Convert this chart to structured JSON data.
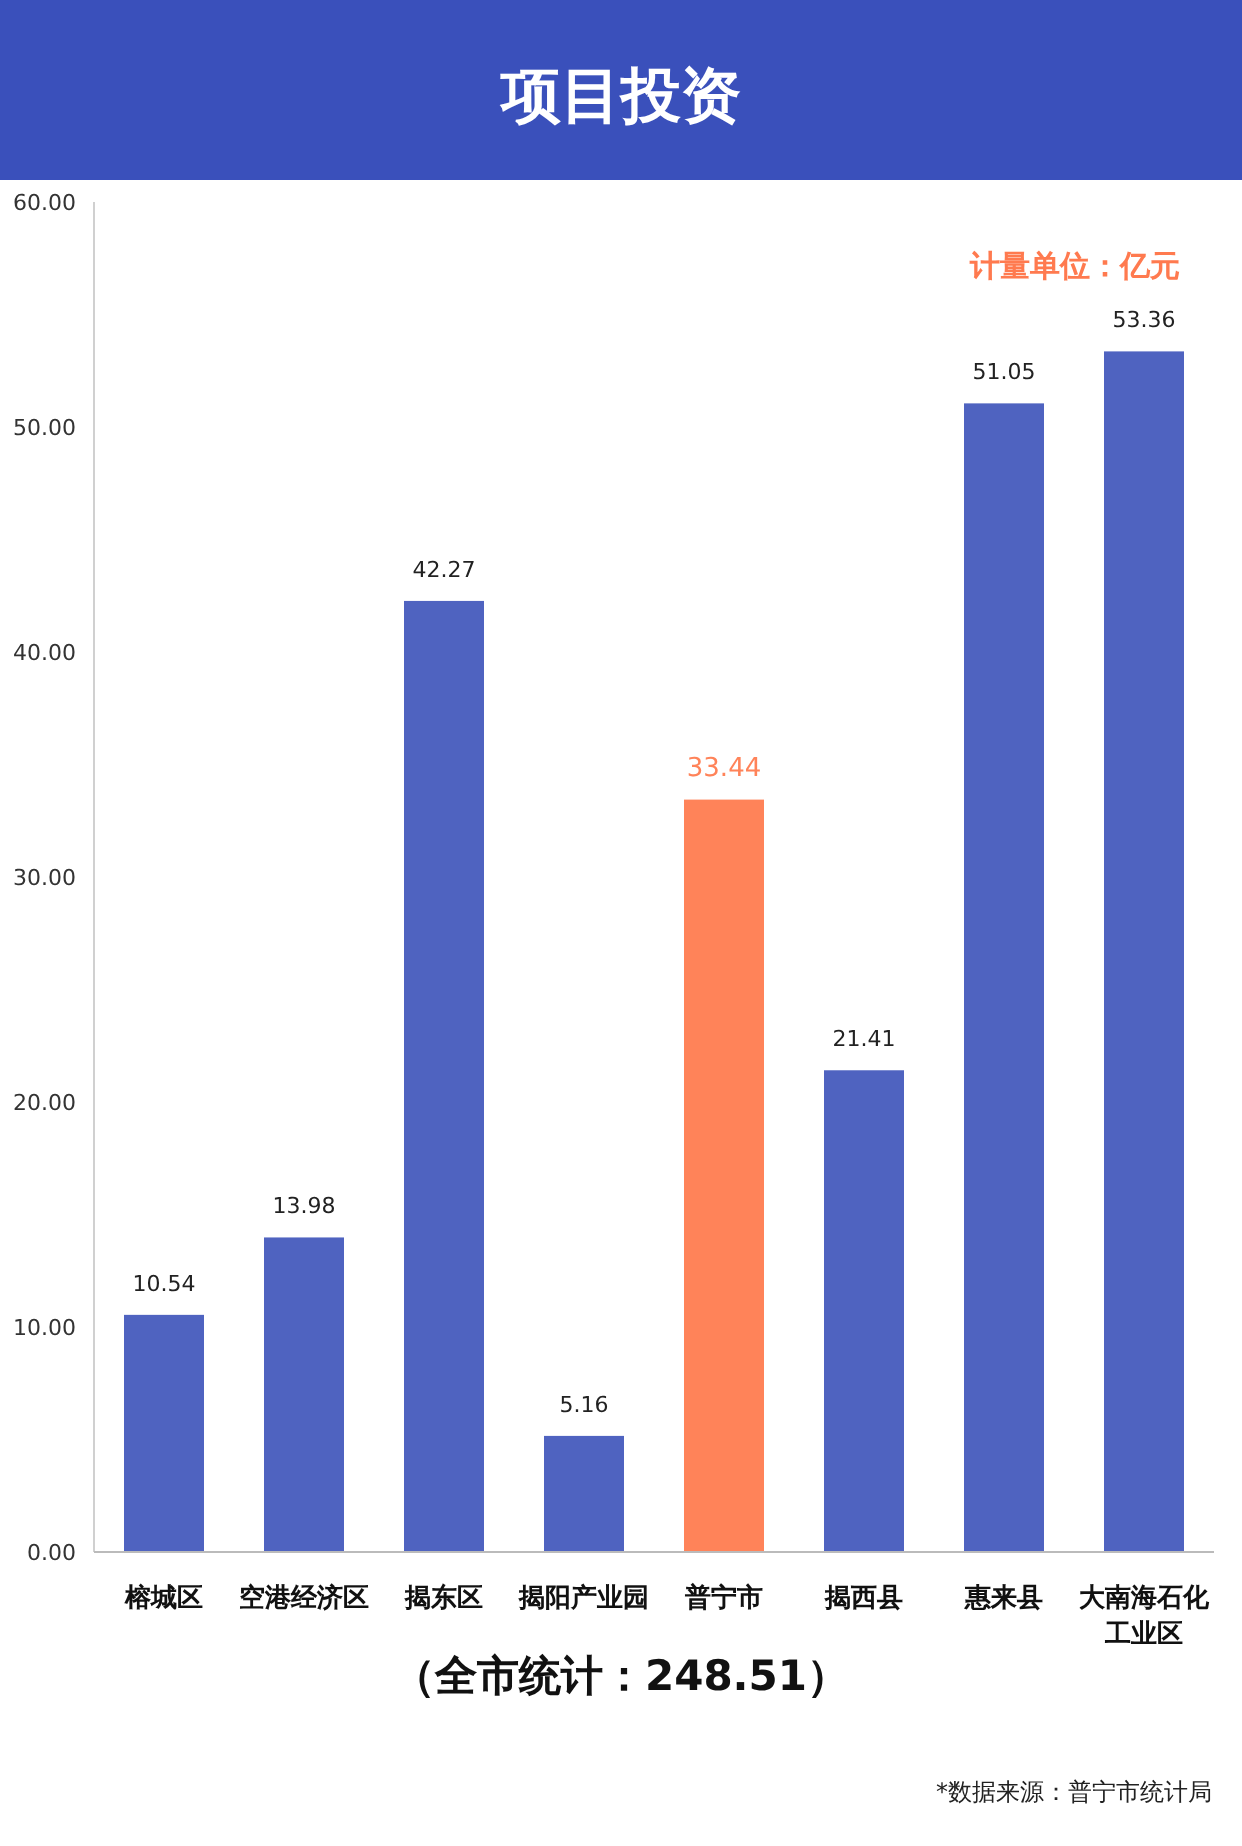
{
  "chart_data": {
    "type": "bar",
    "title": "项目投资",
    "categories": [
      "榕城区",
      "空港经济区",
      "揭东区",
      "揭阳产业园",
      "普宁市",
      "揭西县",
      "惠来县",
      "大南海石化工业区"
    ],
    "values": [
      10.54,
      13.98,
      42.27,
      5.16,
      33.44,
      21.41,
      51.05,
      53.36
    ],
    "colors": [
      "#4f63c0",
      "#4f63c0",
      "#4f63c0",
      "#4f63c0",
      "#ff8359",
      "#4f63c0",
      "#4f63c0",
      "#4f63c0"
    ],
    "ylim": [
      0,
      60
    ],
    "yticks": [
      {
        "value": 0,
        "label": "0.00"
      },
      {
        "value": 10,
        "label": "10.00"
      },
      {
        "value": 20,
        "label": "20.00"
      },
      {
        "value": 30,
        "label": "30.00"
      },
      {
        "value": 40,
        "label": "40.00"
      },
      {
        "value": 50,
        "label": "50.00"
      },
      {
        "value": 60,
        "label": "60.00"
      }
    ],
    "data_labels": true,
    "grid": false,
    "annotations": [
      "计量单位：亿元",
      "（全市统计：248.51）",
      "*数据来源：普宁市统计局"
    ]
  }
}
